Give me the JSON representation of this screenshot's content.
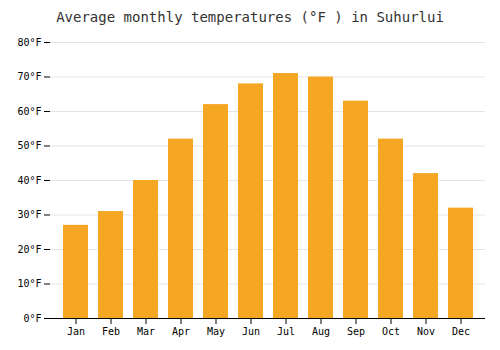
{
  "chart_data": {
    "type": "bar",
    "title": "Average monthly temperatures (°F ) in Suhurlui",
    "categories": [
      "Jan",
      "Feb",
      "Mar",
      "Apr",
      "May",
      "Jun",
      "Jul",
      "Aug",
      "Sep",
      "Oct",
      "Nov",
      "Dec"
    ],
    "values": [
      27,
      31,
      40,
      52,
      62,
      68,
      71,
      70,
      63,
      52,
      42,
      32
    ],
    "color": "#F5A623",
    "ylim": [
      0,
      80
    ],
    "yticks": [
      {
        "value": 0,
        "label": "0°F"
      },
      {
        "value": 10,
        "label": "10°F"
      },
      {
        "value": 20,
        "label": "20°F"
      },
      {
        "value": 30,
        "label": "30°F"
      },
      {
        "value": 40,
        "label": "40°F"
      },
      {
        "value": 50,
        "label": "50°F"
      },
      {
        "value": 60,
        "label": "60°F"
      },
      {
        "value": 70,
        "label": "70°F"
      },
      {
        "value": 80,
        "label": "80°F"
      }
    ],
    "grid": true
  }
}
